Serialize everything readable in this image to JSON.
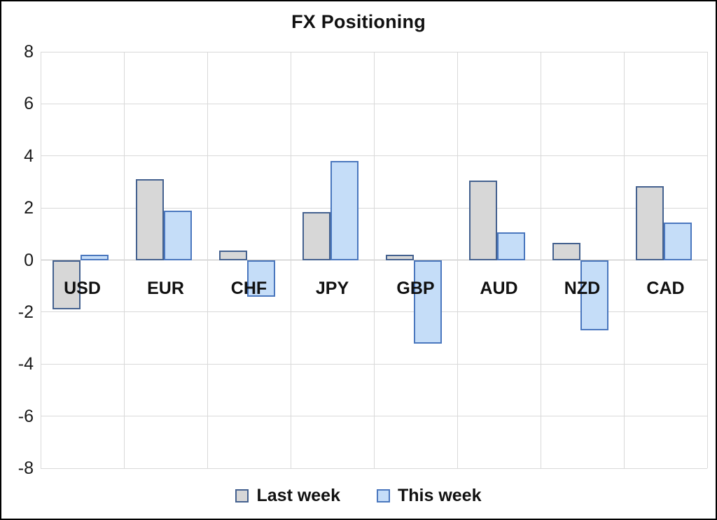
{
  "title": "FX Positioning",
  "chart_data": {
    "type": "bar",
    "title": "FX Positioning",
    "categories": [
      "USD",
      "EUR",
      "CHF",
      "JPY",
      "GBP",
      "AUD",
      "NZD",
      "CAD"
    ],
    "series": [
      {
        "name": "Last week",
        "values": [
          -1.9,
          3.1,
          0.35,
          1.85,
          0.2,
          3.05,
          0.65,
          2.85
        ]
      },
      {
        "name": "This week",
        "values": [
          0.2,
          1.9,
          -1.4,
          3.8,
          -3.2,
          1.05,
          -2.7,
          1.45
        ]
      }
    ],
    "xlabel": "",
    "ylabel": "",
    "ylim": [
      -8,
      8
    ],
    "ytick_step": 2,
    "grid": true,
    "legend_position": "bottom"
  },
  "colors": {
    "last_week_fill": "#D7D7D7",
    "last_week_border": "#44618F",
    "this_week_fill": "#C5DDF8",
    "this_week_border": "#4A77BE",
    "gridline": "#D9D9D9",
    "zero_line": "#B9B9B9",
    "text": "#111111",
    "frame": "#000000"
  },
  "layout_values": {
    "y_tick_labels": [
      "8",
      "6",
      "4",
      "2",
      "0",
      "-2",
      "-4",
      "-6",
      "-8"
    ]
  }
}
